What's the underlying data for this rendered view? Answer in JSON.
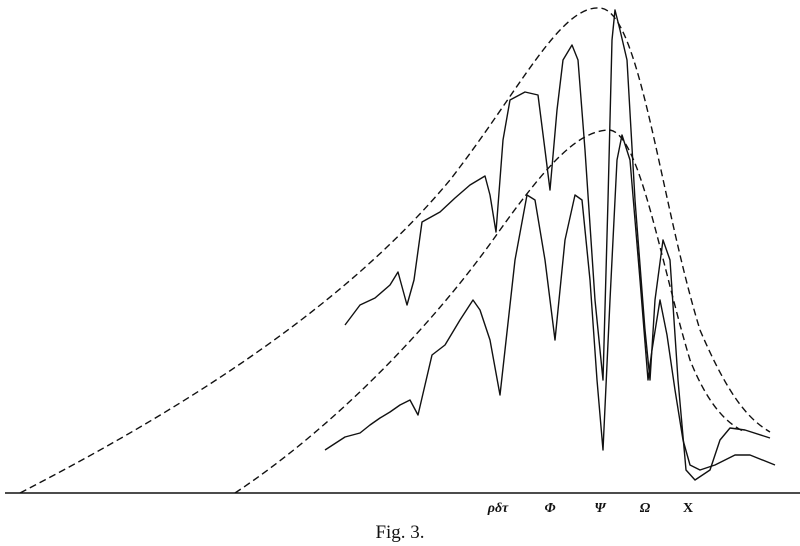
{
  "figure": {
    "labels": [
      "ρδτ",
      "Φ",
      "Ψ",
      "Ω",
      "X"
    ],
    "caption": "Fig. 3."
  }
}
